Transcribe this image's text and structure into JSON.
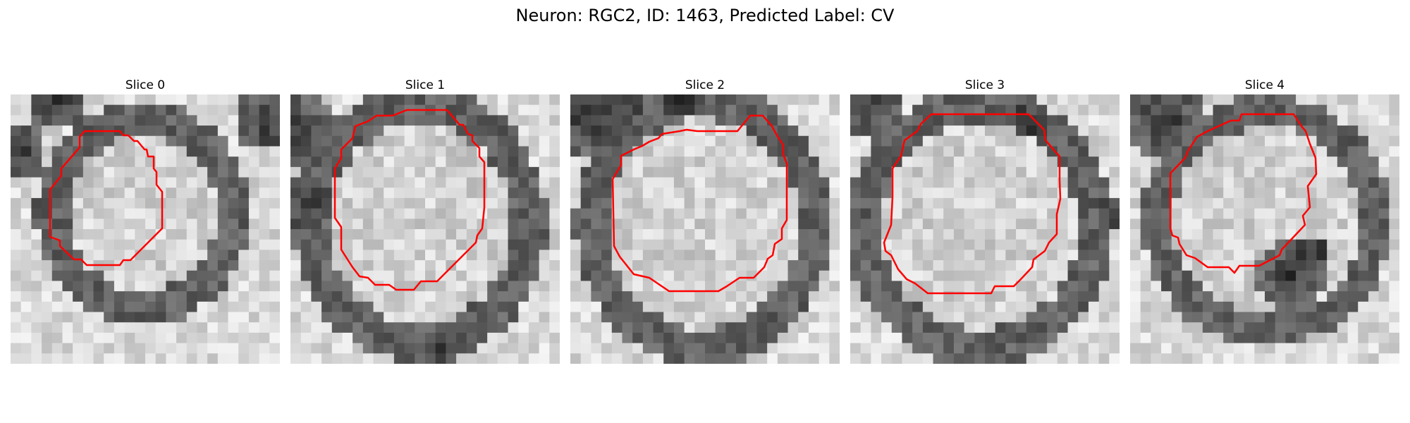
{
  "figure": {
    "title": "Neuron: RGC2, ID: 1463, Predicted Label: CV"
  },
  "contour_color": "#ff0000",
  "panels": [
    {
      "title": "Slice 0"
    },
    {
      "title": "Slice 1"
    },
    {
      "title": "Slice 2"
    },
    {
      "title": "Slice 3"
    },
    {
      "title": "Slice 4"
    }
  ]
}
